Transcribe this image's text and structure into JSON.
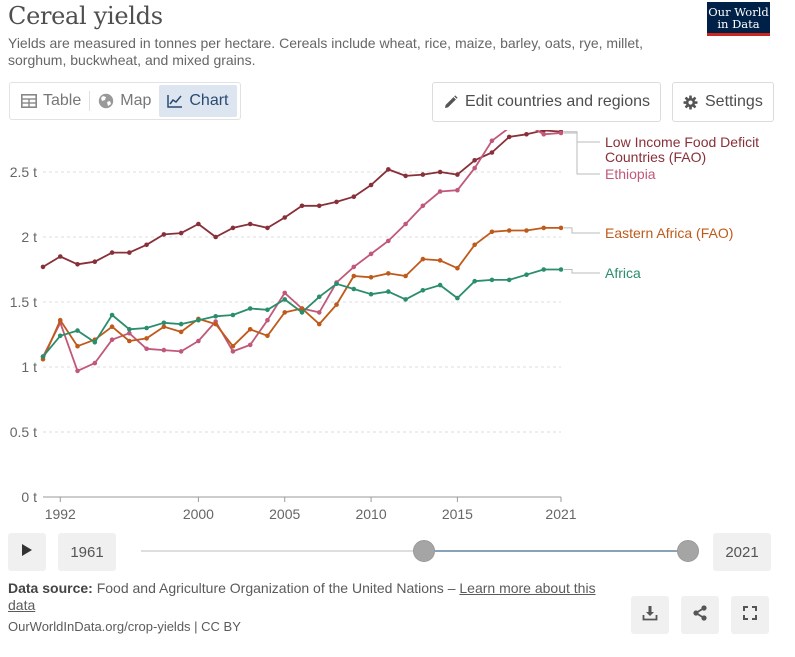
{
  "header": {
    "title": "Cereal yields",
    "subtitle": "Yields are measured in tonnes per hectare. Cereals include wheat, rice, maize, barley, oats, rye, millet, sorghum, buckwheat, and mixed grains.",
    "logo_line1": "Our World",
    "logo_line2": "in Data"
  },
  "tabs": [
    {
      "label": "Table",
      "icon": "table-icon"
    },
    {
      "label": "Map",
      "icon": "globe-icon"
    },
    {
      "label": "Chart",
      "icon": "line-chart-icon",
      "active": true
    }
  ],
  "toolbar": {
    "edit_label": "Edit countries and regions",
    "settings_label": "Settings"
  },
  "chart_data": {
    "type": "line",
    "title": "",
    "xlabel": "",
    "ylabel": "",
    "xlim": [
      1991,
      2021
    ],
    "ylim": [
      0,
      2.8
    ],
    "y_ticks": [
      0,
      0.5,
      1,
      1.5,
      2,
      2.5
    ],
    "y_tick_labels": [
      "0 t",
      "0.5 t",
      "1 t",
      "1.5 t",
      "2 t",
      "2.5 t"
    ],
    "x_ticks": [
      1992,
      2000,
      2005,
      2010,
      2015,
      2021
    ],
    "x_tick_labels": [
      "1992",
      "2000",
      "2005",
      "2010",
      "2015",
      "2021"
    ],
    "grid": "horizontal dashed",
    "legend": "inline labels right",
    "x": [
      1991,
      1992,
      1993,
      1994,
      1995,
      1996,
      1997,
      1998,
      1999,
      2000,
      2001,
      2002,
      2003,
      2004,
      2005,
      2006,
      2007,
      2008,
      2009,
      2010,
      2011,
      2012,
      2013,
      2014,
      2015,
      2016,
      2017,
      2018,
      2019,
      2020,
      2021
    ],
    "series": [
      {
        "name": "Low Income Food Deficit Countries (FAO)",
        "color": "#883039",
        "values": [
          1.77,
          1.85,
          1.79,
          1.81,
          1.88,
          1.88,
          1.94,
          2.02,
          2.03,
          2.1,
          2.0,
          2.07,
          2.1,
          2.07,
          2.15,
          2.24,
          2.24,
          2.27,
          2.31,
          2.4,
          2.52,
          2.47,
          2.48,
          2.5,
          2.48,
          2.59,
          2.65,
          2.77,
          2.79,
          2.82,
          2.81
        ]
      },
      {
        "name": "Ethiopia",
        "color": "#c05979",
        "values": [
          1.08,
          1.34,
          0.97,
          1.03,
          1.21,
          1.26,
          1.14,
          1.13,
          1.12,
          1.2,
          1.35,
          1.12,
          1.17,
          1.36,
          1.57,
          1.45,
          1.42,
          1.65,
          1.77,
          1.87,
          1.97,
          2.1,
          2.24,
          2.35,
          2.36,
          2.53,
          2.74,
          2.84,
          2.87,
          2.79,
          2.8
        ]
      },
      {
        "name": "Eastern Africa (FAO)",
        "color": "#bf5a1a",
        "values": [
          1.06,
          1.36,
          1.16,
          1.21,
          1.31,
          1.2,
          1.22,
          1.31,
          1.27,
          1.37,
          1.33,
          1.16,
          1.29,
          1.24,
          1.42,
          1.45,
          1.33,
          1.48,
          1.7,
          1.69,
          1.72,
          1.7,
          1.83,
          1.82,
          1.76,
          1.94,
          2.04,
          2.05,
          2.05,
          2.07,
          2.07
        ]
      },
      {
        "name": "Africa",
        "color": "#2a8d6b",
        "values": [
          1.08,
          1.24,
          1.28,
          1.19,
          1.4,
          1.29,
          1.3,
          1.34,
          1.33,
          1.36,
          1.39,
          1.4,
          1.45,
          1.44,
          1.52,
          1.42,
          1.54,
          1.64,
          1.6,
          1.56,
          1.58,
          1.52,
          1.59,
          1.63,
          1.53,
          1.66,
          1.67,
          1.67,
          1.71,
          1.75,
          1.75
        ]
      }
    ],
    "labels": [
      {
        "lines": [
          "Low Income Food Deficit",
          "Countries (FAO)"
        ],
        "color": "#883039",
        "series": 0
      },
      {
        "lines": [
          "Ethiopia"
        ],
        "color": "#c05979",
        "series": 1
      },
      {
        "lines": [
          "Eastern Africa (FAO)"
        ],
        "color": "#bf5a1a",
        "series": 2
      },
      {
        "lines": [
          "Africa"
        ],
        "color": "#2a8d6b",
        "series": 3
      }
    ]
  },
  "timeline": {
    "start_label": "1961",
    "end_label": "2021",
    "start_value": 1991,
    "end_value": 2021
  },
  "footer": {
    "source_label": "Data source:",
    "source_text": "Food and Agriculture Organization of the United Nations –",
    "learn_more": "Learn more about this data",
    "url": "OurWorldInData.org/crop-yields | CC BY"
  }
}
